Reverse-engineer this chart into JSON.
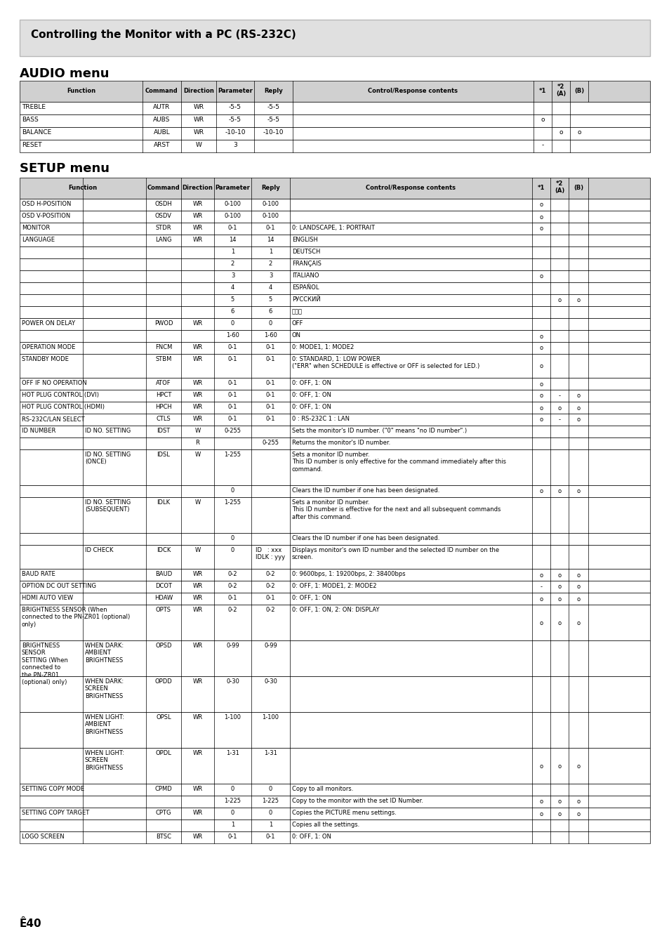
{
  "page_title": "Controlling the Monitor with a PC (RS-232C)",
  "audio_menu_title": "AUDIO menu",
  "setup_menu_title": "SETUP menu",
  "bg_color": "#ffffff",
  "page_number": "Ê40"
}
